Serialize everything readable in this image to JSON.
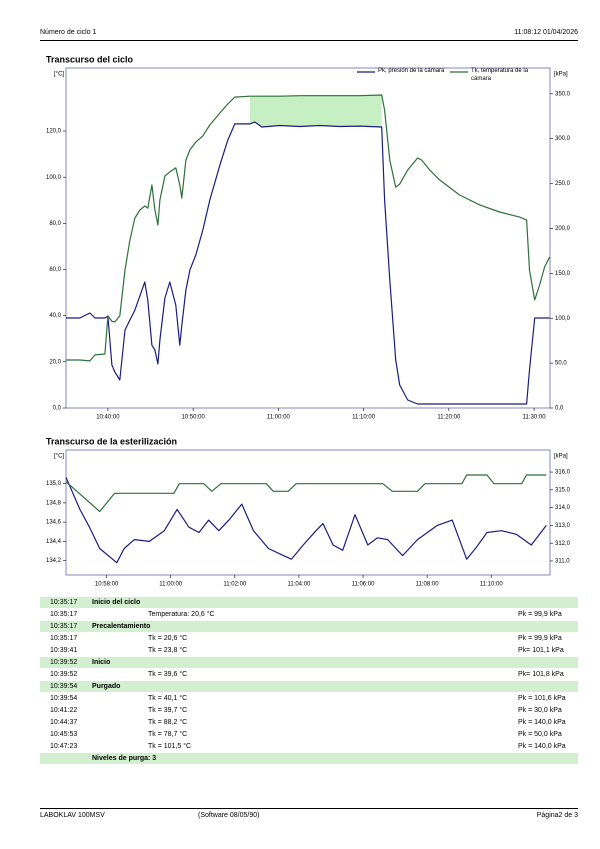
{
  "header": {
    "cycle": "Número de ciclo 1",
    "datetime": "11:08:12 01/04/2026"
  },
  "chart_data": [
    {
      "type": "line",
      "title": "Transcurso del ciclo",
      "y_label": "[°C]",
      "y2_label": "[kPa]",
      "x": [
        "10:35:05",
        "10:36:43",
        "10:37:53",
        "10:38:29",
        "10:39:39",
        "10:40:00",
        "10:40:28",
        "10:40:49",
        "10:41:24",
        "10:42:00",
        "10:42:35",
        "10:43:10",
        "10:43:45",
        "10:44:20",
        "10:44:41",
        "10:45:10",
        "10:45:31",
        "10:45:52",
        "10:46:06",
        "10:46:41",
        "10:47:16",
        "10:47:58",
        "10:48:26",
        "10:48:40",
        "10:49:09",
        "10:49:37",
        "10:50:19",
        "10:51:08",
        "10:51:57",
        "10:53:08",
        "10:54:04",
        "10:54:53",
        "10:56:39",
        "10:57:14",
        "10:58:03",
        "11:00:10",
        "11:02:31",
        "11:04:51",
        "11:07:12",
        "11:09:33",
        "11:12:07",
        "11:12:28",
        "11:13:04",
        "11:13:46",
        "11:14:14",
        "11:15:10",
        "11:16:20",
        "11:16:49",
        "11:17:45",
        "11:18:55",
        "11:21:16",
        "11:23:37",
        "11:25:57",
        "11:28:18",
        "11:29:07",
        "11:29:28",
        "11:30:04",
        "11:30:39",
        "11:31:14",
        "11:31:49"
      ],
      "xlim": [
        "10:35:05",
        "11:31:52"
      ],
      "xticks": [
        "10:40:00",
        "10:50:00",
        "11:00:00",
        "11:10:00",
        "11:20:00",
        "11:30:00"
      ],
      "ylim": [
        0,
        147.3
      ],
      "yticks": [
        {
          "value": 0,
          "label": "0,0"
        },
        {
          "value": 20,
          "label": "20,0"
        },
        {
          "value": 40,
          "label": "40,0"
        },
        {
          "value": 60,
          "label": "60,0"
        },
        {
          "value": 80,
          "label": "80,0"
        },
        {
          "value": 100,
          "label": "100,0"
        },
        {
          "value": 120,
          "label": "120,0"
        }
      ],
      "y2lim": [
        0,
        378.7
      ],
      "y2ticks": [
        {
          "value": 0,
          "label": "0,0"
        },
        {
          "value": 50,
          "label": "50,0"
        },
        {
          "value": 100,
          "label": "100,0"
        },
        {
          "value": 150,
          "label": "150,0"
        },
        {
          "value": 200,
          "label": "200,0"
        },
        {
          "value": 250,
          "label": "250,0"
        },
        {
          "value": 300,
          "label": "300,0"
        },
        {
          "value": 350,
          "label": "350,0"
        }
      ],
      "legend": "top",
      "fill_between": {
        "span": [
          "10:56:39",
          "11:12:07"
        ],
        "color": "#c6f0c4"
      },
      "series": [
        {
          "name": "Pk, presión de la cámara",
          "color": "#1c1c80",
          "axis": "y2",
          "values": [
            100.2,
            100.2,
            105.8,
            100.2,
            100.2,
            102.5,
            47.9,
            40,
            31.2,
            86.9,
            98,
            109,
            125,
            140.3,
            120,
            70,
            64.6,
            49,
            75.7,
            122.5,
            140.3,
            114.5,
            70,
            92,
            131.4,
            153.7,
            170.4,
            198.2,
            231.6,
            270.6,
            298.4,
            316.4,
            316.4,
            318.6,
            313,
            314.6,
            313.5,
            314.6,
            313.5,
            314,
            313,
            231.6,
            142.5,
            53.5,
            25.6,
            8.9,
            4.5,
            4.5,
            4.5,
            4.5,
            4.5,
            4.5,
            4.5,
            4.5,
            4.5,
            42.3,
            100.2,
            100.2,
            100.2,
            100.2
          ]
        },
        {
          "name": "Tk, temperatura de la cámara",
          "color": "#2f6f3a",
          "values": [
            20.8,
            20.8,
            20.4,
            23.0,
            23.4,
            39.9,
            37.5,
            37.3,
            39.9,
            59.8,
            72.8,
            82.3,
            85.8,
            87.5,
            86.6,
            96.6,
            85.8,
            79.3,
            90.1,
            100.5,
            102.3,
            104.0,
            96.6,
            91.0,
            107.4,
            111.8,
            115.2,
            117.9,
            122.6,
            127.8,
            131.7,
            134.7,
            135.1,
            135.1,
            135.1,
            135.1,
            135.3,
            135.3,
            135.3,
            135.3,
            135.6,
            129.0,
            107.4,
            95.7,
            97.0,
            103.1,
            108.3,
            107.4,
            103.1,
            98.8,
            92.3,
            88.0,
            84.9,
            82.7,
            81.5,
            59.8,
            46.8,
            53.3,
            61.1,
            65.4
          ]
        }
      ]
    },
    {
      "type": "line",
      "title": "Transcurso de la esterilización",
      "y_label": "[°C]",
      "y2_label": "[kPa]",
      "xlim": [
        "10:56:44",
        "11:11:50"
      ],
      "xticks": [
        "10:58:00",
        "11:00:00",
        "11:02:00",
        "11:04:00",
        "11:06:00",
        "11:08:00",
        "11:10:00"
      ],
      "ylim": [
        134.05,
        135.35
      ],
      "yticks": [
        {
          "value": 134.2,
          "label": "134,2"
        },
        {
          "value": 134.4,
          "label": "134,4"
        },
        {
          "value": 134.6,
          "label": "134,6"
        },
        {
          "value": 134.8,
          "label": "134,8"
        },
        {
          "value": 135,
          "label": "135,0"
        }
      ],
      "y2lim": [
        310.21,
        317.24
      ],
      "y2ticks": [
        {
          "value": 311,
          "label": "311,0"
        },
        {
          "value": 312,
          "label": "312,0"
        },
        {
          "value": 313,
          "label": "313,0"
        },
        {
          "value": 314,
          "label": "314,0"
        },
        {
          "value": 315,
          "label": "315,0"
        },
        {
          "value": 316,
          "label": "316,0"
        }
      ],
      "series": [
        {
          "color": "#1c1c80",
          "axis": "y2",
          "x": [
            "10:56:44",
            "10:57:10",
            "10:57:28",
            "10:57:47",
            "10:58:19",
            "10:58:33",
            "10:58:52",
            "10:59:20",
            "10:59:48",
            "11:00:12",
            "11:00:34",
            "11:00:53",
            "11:01:11",
            "11:01:30",
            "11:01:49",
            "11:02:13",
            "11:02:35",
            "11:03:03",
            "11:03:31",
            "11:03:46",
            "11:04:08",
            "11:04:32",
            "11:04:45",
            "11:05:04",
            "11:05:22",
            "11:05:45",
            "11:06:09",
            "11:06:27",
            "11:06:46",
            "11:07:14",
            "11:07:42",
            "11:08:19",
            "11:08:47",
            "11:09:14",
            "11:09:33",
            "11:09:52",
            "11:10:19",
            "11:10:47",
            "11:11:15",
            "11:11:43"
          ],
          "values": [
            315.7,
            313.9,
            312.9,
            311.7,
            310.9,
            311.7,
            312.2,
            312.1,
            312.7,
            313.9,
            312.9,
            312.6,
            313.3,
            312.7,
            313.3,
            314.2,
            312.7,
            311.7,
            311.3,
            311.1,
            311.9,
            312.7,
            313.1,
            311.9,
            311.6,
            313.6,
            311.9,
            312.3,
            312.2,
            311.3,
            312.2,
            313.0,
            313.3,
            311.1,
            311.8,
            312.6,
            312.7,
            312.5,
            311.9,
            313.0
          ]
        },
        {
          "color": "#2f6f3a",
          "x": [
            "10:56:44",
            "10:57:47",
            "10:58:15",
            "11:00:06",
            "11:00:16",
            "11:01:02",
            "11:01:17",
            "11:01:34",
            "11:02:59",
            "11:03:12",
            "11:03:40",
            "11:03:55",
            "11:06:37",
            "11:06:55",
            "11:07:42",
            "11:07:56",
            "11:09:05",
            "11:09:14",
            "11:09:52",
            "11:10:05",
            "11:10:57",
            "11:11:06",
            "11:11:43"
          ],
          "values": [
            135.02,
            134.71,
            134.9,
            134.9,
            135.0,
            135.0,
            134.92,
            135.0,
            135.0,
            134.92,
            134.92,
            135.0,
            135.0,
            134.92,
            134.92,
            135.0,
            135.0,
            135.09,
            135.09,
            135.0,
            135.0,
            135.09,
            135.09
          ]
        }
      ]
    }
  ],
  "log": {
    "sections": [
      {
        "time": "10:35:17",
        "title": "Inicio del ciclo",
        "rows": [
          {
            "time": "10:35:17",
            "tk": "Temperatura: 20,6 °C",
            "pk": "Pk = 99,9 kPa"
          }
        ]
      },
      {
        "time": "10:35:17",
        "title": "Precalentamiento",
        "rows": [
          {
            "time": "10:35:17",
            "tk": "Tk = 20,6 °C",
            "pk": "Pk = 99,9 kPa"
          },
          {
            "time": "10:39:41",
            "tk": "Tk = 23,8 °C",
            "pk": "Pk= 101,1 kPa"
          }
        ]
      },
      {
        "time": "10:39:52",
        "title": "Inicio",
        "rows": [
          {
            "time": "10:39:52",
            "tk": "Tk = 39,6 °C",
            "pk": "Pk= 101,8 kPa"
          }
        ]
      },
      {
        "time": "10:39:54",
        "title": "Purgado",
        "rows": [
          {
            "time": "10:39:54",
            "tk": "Tk = 40,1 °C",
            "pk": "Pk = 101,6 kPa"
          },
          {
            "time": "10:41:22",
            "tk": "Tk = 39,7 °C",
            "pk": "Pk = 30,0 kPa"
          },
          {
            "time": "10:44:37",
            "tk": "Tk = 88,2 °C",
            "pk": "Pk = 140,0 kPa"
          },
          {
            "time": "10:45:53",
            "tk": "Tk = 78,7 °C",
            "pk": "Pk = 50,0 kPa"
          },
          {
            "time": "10:47:23",
            "tk": "Tk = 101,5 °C",
            "pk": "Pk = 140,0 kPa"
          }
        ]
      }
    ],
    "summary": "Niveles de purga: 3"
  },
  "footer": {
    "device": "LABOKLAV 100MSV",
    "software": "(Software 08/05/90)",
    "page": "Página2 de 3"
  }
}
